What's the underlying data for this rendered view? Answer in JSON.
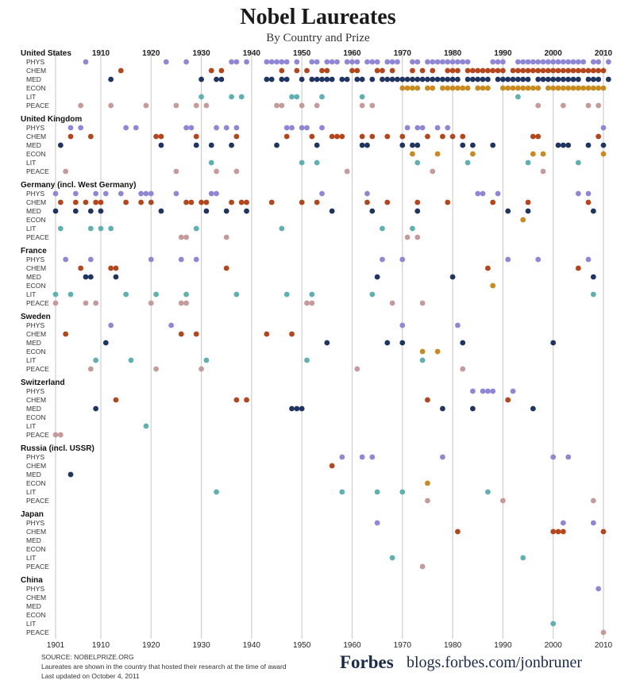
{
  "header": {
    "title": "Nobel Laureates",
    "subtitle": "By Country and Prize"
  },
  "footer": {
    "source": "SOURCE: NOBELPRIZE.ORG",
    "note": "Laureates are shown in the country that hosted their research at the time of award",
    "updated": "Last updated on October 4, 2011",
    "brand": "Forbes",
    "site": "blogs.forbes.com/jonbruner"
  },
  "colors": {
    "PHYS": "#8f86d6",
    "CHEM": "#b5451b",
    "MED": "#1f3460",
    "ECON": "#c98a1e",
    "LIT": "#5fb0b0",
    "PEACE": "#c59a9a"
  },
  "chart_data": {
    "type": "scatter",
    "x_range": [
      1901,
      2011
    ],
    "top_decade_ticks": [
      1910,
      1920,
      1930,
      1940,
      1950,
      1960,
      1970,
      1980,
      1990,
      2000,
      2010
    ],
    "bottom_ticks": [
      1901,
      1910,
      1920,
      1930,
      1940,
      1950,
      1960,
      1970,
      1980,
      1990,
      2000,
      2010
    ],
    "categories": [
      "PHYS",
      "CHEM",
      "MED",
      "ECON",
      "LIT",
      "PEACE"
    ],
    "countries": [
      {
        "name": "United States",
        "PHYS": [
          1907,
          1923,
          1927,
          1936,
          1937,
          1939,
          1943,
          1944,
          1945,
          1946,
          1947,
          1949,
          1952,
          1953,
          1955,
          1956,
          1957,
          1959,
          1960,
          1961,
          1963,
          1964,
          1965,
          1967,
          1968,
          1969,
          1972,
          1973,
          1975,
          1976,
          1977,
          1978,
          1979,
          1980,
          1981,
          1982,
          1983,
          1988,
          1989,
          1990,
          1993,
          1994,
          1995,
          1996,
          1997,
          1998,
          1999,
          2000,
          2001,
          2002,
          2003,
          2004,
          2005,
          2006,
          2008,
          2009,
          2011
        ],
        "CHEM": [
          1914,
          1932,
          1934,
          1946,
          1949,
          1951,
          1954,
          1955,
          1960,
          1961,
          1965,
          1966,
          1968,
          1972,
          1974,
          1976,
          1979,
          1980,
          1981,
          1983,
          1984,
          1985,
          1986,
          1987,
          1988,
          1989,
          1990,
          1992,
          1993,
          1994,
          1995,
          1996,
          1997,
          1998,
          1999,
          2000,
          2001,
          2002,
          2003,
          2004,
          2005,
          2006,
          2007,
          2008,
          2009,
          2010
        ],
        "MED": [
          1912,
          1930,
          1933,
          1934,
          1943,
          1944,
          1946,
          1947,
          1950,
          1952,
          1953,
          1954,
          1955,
          1956,
          1958,
          1959,
          1961,
          1962,
          1964,
          1966,
          1967,
          1968,
          1969,
          1970,
          1971,
          1972,
          1973,
          1974,
          1975,
          1976,
          1977,
          1978,
          1979,
          1980,
          1981,
          1983,
          1984,
          1985,
          1986,
          1987,
          1989,
          1990,
          1991,
          1992,
          1993,
          1994,
          1995,
          1997,
          1998,
          1999,
          2000,
          2001,
          2002,
          2003,
          2004,
          2005,
          2007,
          2008,
          2009,
          2011
        ],
        "ECON": [
          1970,
          1971,
          1972,
          1973,
          1975,
          1976,
          1978,
          1979,
          1980,
          1981,
          1982,
          1983,
          1985,
          1986,
          1987,
          1990,
          1991,
          1992,
          1993,
          1994,
          1995,
          1996,
          1997,
          1999,
          2000,
          2001,
          2002,
          2003,
          2004,
          2005,
          2006,
          2007,
          2008,
          2009,
          2010
        ],
        "LIT": [
          1930,
          1936,
          1938,
          1948,
          1949,
          1954,
          1962,
          1993
        ],
        "PEACE": [
          1906,
          1912,
          1919,
          1925,
          1929,
          1931,
          1945,
          1946,
          1950,
          1953,
          1962,
          1964,
          1997,
          2002,
          2007,
          2009
        ]
      },
      {
        "name": "United Kingdom",
        "PHYS": [
          1904,
          1906,
          1915,
          1917,
          1927,
          1928,
          1933,
          1935,
          1937,
          1947,
          1948,
          1950,
          1951,
          1954,
          1971,
          1973,
          1974,
          1977,
          1979,
          2010
        ],
        "CHEM": [
          1904,
          1908,
          1921,
          1922,
          1929,
          1937,
          1947,
          1952,
          1956,
          1957,
          1958,
          1962,
          1964,
          1967,
          1970,
          1975,
          1978,
          1980,
          1982,
          1996,
          1997,
          2009
        ],
        "MED": [
          1902,
          1922,
          1929,
          1932,
          1936,
          1945,
          1953,
          1962,
          1963,
          1970,
          1972,
          1973,
          1982,
          1984,
          1988,
          2001,
          2002,
          2003,
          2007,
          2010
        ],
        "ECON": [
          1972,
          1977,
          1984,
          1996,
          1998,
          2010
        ],
        "LIT": [
          1932,
          1950,
          1953,
          1973,
          1983,
          1995,
          2005
        ],
        "PEACE": [
          1903,
          1925,
          1933,
          1937,
          1959,
          1976,
          1998
        ]
      },
      {
        "name": "Germany (incl. West Germany)",
        "PHYS": [
          1901,
          1905,
          1909,
          1911,
          1914,
          1918,
          1919,
          1920,
          1925,
          1932,
          1933,
          1954,
          1963,
          1985,
          1986,
          1989,
          2005,
          2007
        ],
        "CHEM": [
          1902,
          1905,
          1907,
          1909,
          1910,
          1915,
          1918,
          1920,
          1927,
          1928,
          1930,
          1931,
          1936,
          1938,
          1939,
          1944,
          1950,
          1953,
          1963,
          1967,
          1973,
          1979,
          1988,
          1995,
          2007
        ],
        "MED": [
          1901,
          1905,
          1908,
          1910,
          1922,
          1931,
          1935,
          1939,
          1956,
          1964,
          1973,
          1991,
          1995,
          2008
        ],
        "ECON": [
          1994
        ],
        "LIT": [
          1902,
          1908,
          1910,
          1912,
          1929,
          1946,
          1966,
          1972
        ],
        "PEACE": [
          1926,
          1927,
          1935,
          1971,
          1973
        ]
      },
      {
        "name": "France",
        "PHYS": [
          1903,
          1908,
          1920,
          1926,
          1929,
          1966,
          1970,
          1991,
          1997,
          2007
        ],
        "CHEM": [
          1906,
          1912,
          1913,
          1935,
          1987,
          2005
        ],
        "MED": [
          1907,
          1908,
          1913,
          1965,
          1980,
          2008
        ],
        "ECON": [
          1988
        ],
        "LIT": [
          1901,
          1904,
          1915,
          1921,
          1927,
          1937,
          1947,
          1952,
          1964,
          2008
        ],
        "PEACE": [
          1901,
          1907,
          1909,
          1920,
          1926,
          1927,
          1951,
          1952,
          1968,
          1974
        ]
      },
      {
        "name": "Sweden",
        "PHYS": [
          1912,
          1924,
          1970,
          1981
        ],
        "CHEM": [
          1903,
          1926,
          1929,
          1943,
          1948
        ],
        "MED": [
          1911,
          1955,
          1967,
          1970,
          1982,
          2000
        ],
        "ECON": [
          1974,
          1977
        ],
        "LIT": [
          1909,
          1916,
          1931,
          1951,
          1974
        ],
        "PEACE": [
          1908,
          1921,
          1930,
          1961,
          1982
        ]
      },
      {
        "name": "Switzerland",
        "PHYS": [
          1984,
          1986,
          1987,
          1988,
          1992
        ],
        "CHEM": [
          1913,
          1937,
          1939,
          1975,
          1991
        ],
        "MED": [
          1909,
          1948,
          1949,
          1950,
          1978,
          1984,
          1996
        ],
        "ECON": [],
        "LIT": [
          1919
        ],
        "PEACE": [
          1901,
          1902
        ]
      },
      {
        "name": "Russia (incl. USSR)",
        "PHYS": [
          1958,
          1962,
          1964,
          1978,
          2000,
          2003
        ],
        "CHEM": [
          1956
        ],
        "MED": [
          1904
        ],
        "ECON": [
          1975
        ],
        "LIT": [
          1933,
          1958,
          1965,
          1970,
          1987
        ],
        "PEACE": [
          1975,
          1990,
          2008
        ]
      },
      {
        "name": "Japan",
        "PHYS": [
          1965,
          2002,
          2008
        ],
        "CHEM": [
          1981,
          2000,
          2001,
          2002,
          2010
        ],
        "MED": [],
        "ECON": [],
        "LIT": [
          1968,
          1994
        ],
        "PEACE": [
          1974
        ]
      },
      {
        "name": "China",
        "PHYS": [
          2009
        ],
        "CHEM": [],
        "MED": [],
        "ECON": [],
        "LIT": [
          2000
        ],
        "PEACE": [
          2010
        ]
      }
    ]
  }
}
